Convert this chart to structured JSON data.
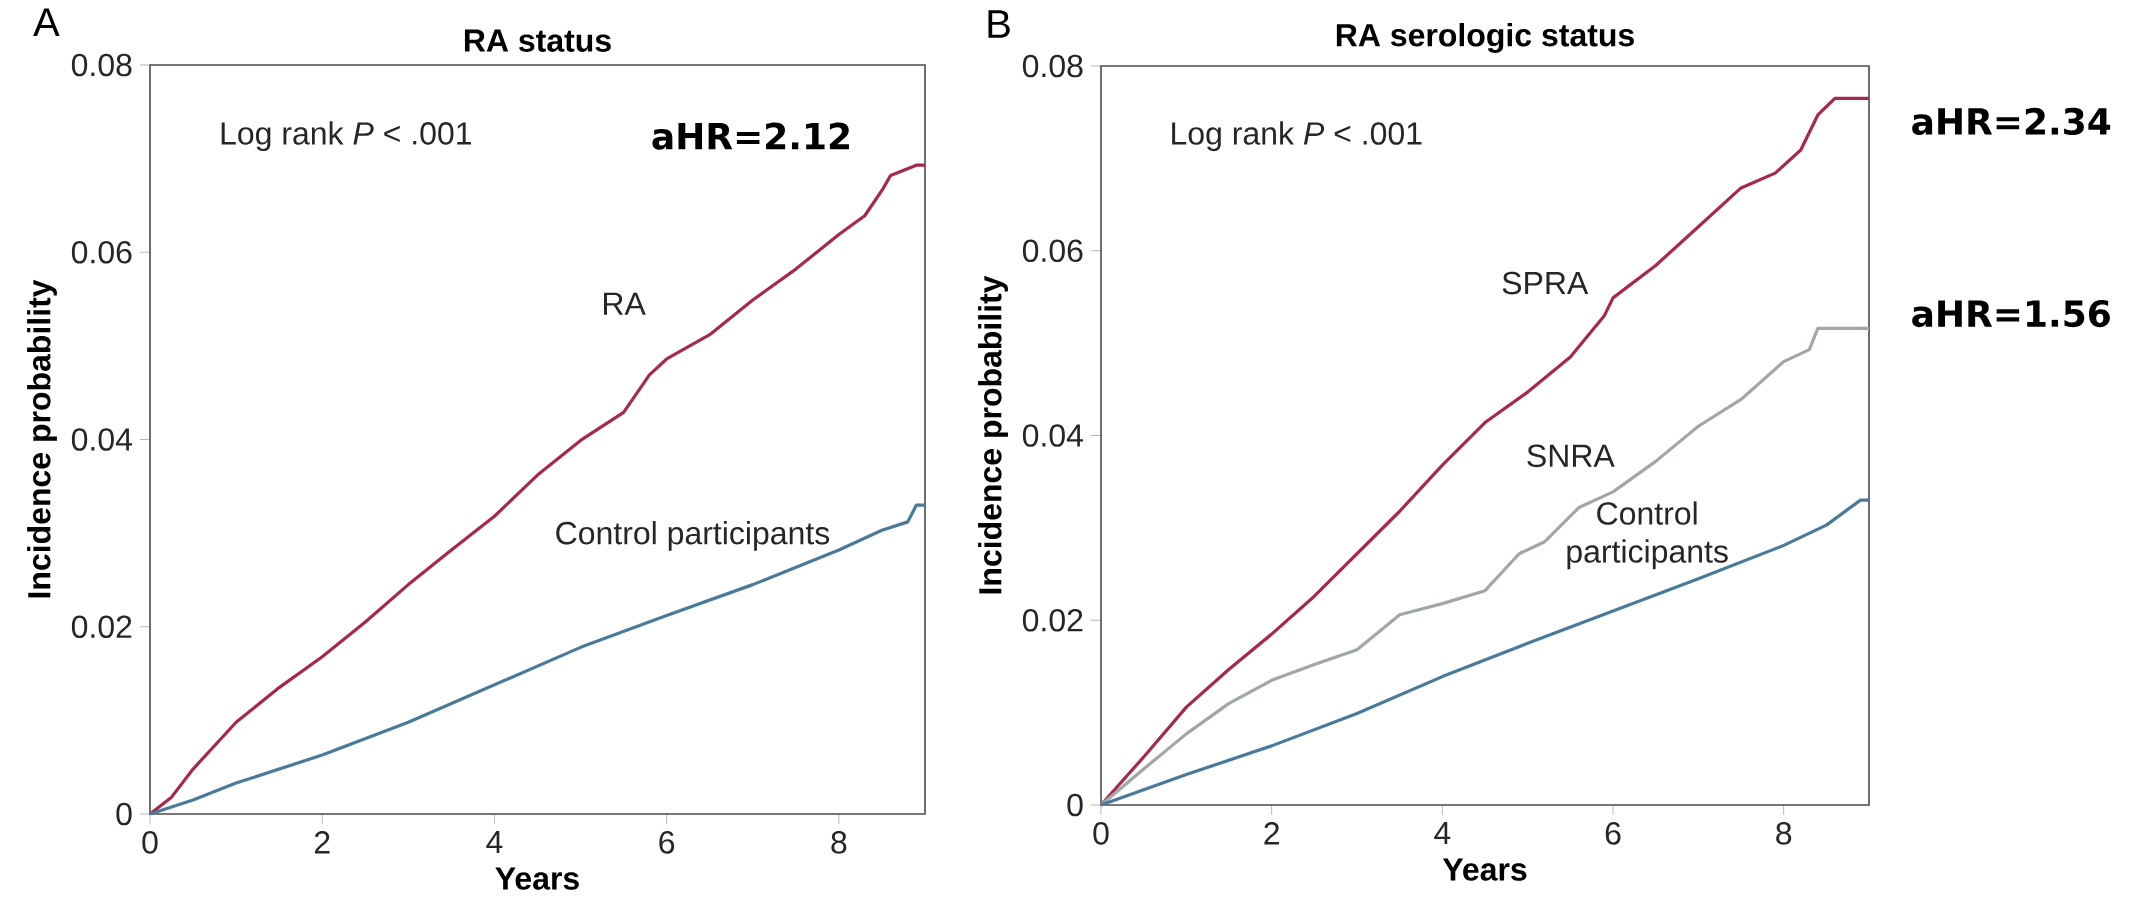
{
  "chart_data": [
    {
      "type": "line",
      "title": "RA status",
      "xlabel": "Years",
      "ylabel": "Incidence probability",
      "xlim": [
        0,
        9
      ],
      "ylim": [
        0,
        0.08
      ],
      "xticks": [
        0,
        2,
        4,
        6,
        8
      ],
      "yticks": [
        0,
        0.02,
        0.04,
        0.06,
        0.08
      ],
      "grid": false,
      "legend": false,
      "annotations": [
        "A",
        "Log rank *P* < .001",
        "aHR=2.12"
      ],
      "series": [
        {
          "name": "RA",
          "color": "#a8284b",
          "x": [
            0,
            0.25,
            0.5,
            1,
            1.5,
            2,
            2.5,
            3,
            3.5,
            4,
            4.5,
            5,
            5.5,
            5.8,
            6,
            6.5,
            7,
            7.5,
            8,
            8.3,
            8.5,
            8.6,
            8.9,
            9
          ],
          "values": [
            0,
            0.0018,
            0.0048,
            0.0098,
            0.0135,
            0.0168,
            0.0205,
            0.0245,
            0.0282,
            0.0318,
            0.0362,
            0.0399,
            0.0429,
            0.0469,
            0.0486,
            0.0512,
            0.0549,
            0.0582,
            0.0619,
            0.0639,
            0.0666,
            0.0682,
            0.0693,
            0.0693
          ]
        },
        {
          "name": "Control participants",
          "color": "#4a7a9b",
          "x": [
            0,
            0.5,
            1,
            2,
            3,
            4,
            5,
            6,
            7,
            8,
            8.5,
            8.8,
            8.9,
            9
          ],
          "values": [
            0,
            0.0015,
            0.0033,
            0.0063,
            0.0098,
            0.0138,
            0.0178,
            0.0212,
            0.0245,
            0.0282,
            0.0303,
            0.0312,
            0.033,
            0.033
          ]
        }
      ]
    },
    {
      "type": "line",
      "title": "RA serologic status",
      "xlabel": "Years",
      "ylabel": "Incidence probability",
      "xlim": [
        0,
        9
      ],
      "ylim": [
        0,
        0.08
      ],
      "xticks": [
        0,
        2,
        4,
        6,
        8
      ],
      "yticks": [
        0,
        0.02,
        0.04,
        0.06,
        0.08
      ],
      "grid": false,
      "legend": false,
      "annotations": [
        "B",
        "Log rank *P* < .001",
        "aHR=2.34",
        "aHR=1.56"
      ],
      "series": [
        {
          "name": "SPRA",
          "color": "#a8284b",
          "x": [
            0,
            0.5,
            1,
            1.5,
            2,
            2.5,
            3,
            3.5,
            4,
            4.5,
            5,
            5.5,
            5.9,
            6,
            6.5,
            7,
            7.5,
            7.9,
            8.2,
            8.4,
            8.6,
            9
          ],
          "values": [
            0,
            0.0052,
            0.0106,
            0.0147,
            0.0185,
            0.0226,
            0.0272,
            0.0318,
            0.0368,
            0.0414,
            0.0447,
            0.0485,
            0.053,
            0.0549,
            0.0584,
            0.0626,
            0.0668,
            0.0684,
            0.0709,
            0.0747,
            0.0765,
            0.0765
          ]
        },
        {
          "name": "SNRA",
          "color": "#a0a8a4",
          "x": [
            0,
            0.5,
            1,
            1.5,
            2,
            2.5,
            3,
            3.5,
            4,
            4.5,
            4.9,
            5.2,
            5.6,
            6,
            6.5,
            7,
            7.5,
            8,
            8.3,
            8.4,
            9
          ],
          "values": [
            0,
            0.0039,
            0.0077,
            0.011,
            0.0135,
            0.0152,
            0.0168,
            0.0206,
            0.0218,
            0.0232,
            0.0272,
            0.0285,
            0.0322,
            0.0339,
            0.0372,
            0.041,
            0.0439,
            0.048,
            0.0493,
            0.0516,
            0.0516
          ]
        },
        {
          "name": "Control participants",
          "color": "#4a7a9b",
          "x": [
            0,
            1,
            2,
            3,
            4,
            5,
            6,
            7,
            8,
            8.5,
            8.9,
            9
          ],
          "values": [
            0,
            0.0033,
            0.0064,
            0.0099,
            0.0139,
            0.0175,
            0.021,
            0.0245,
            0.0281,
            0.0303,
            0.033,
            0.033
          ]
        }
      ]
    }
  ]
}
